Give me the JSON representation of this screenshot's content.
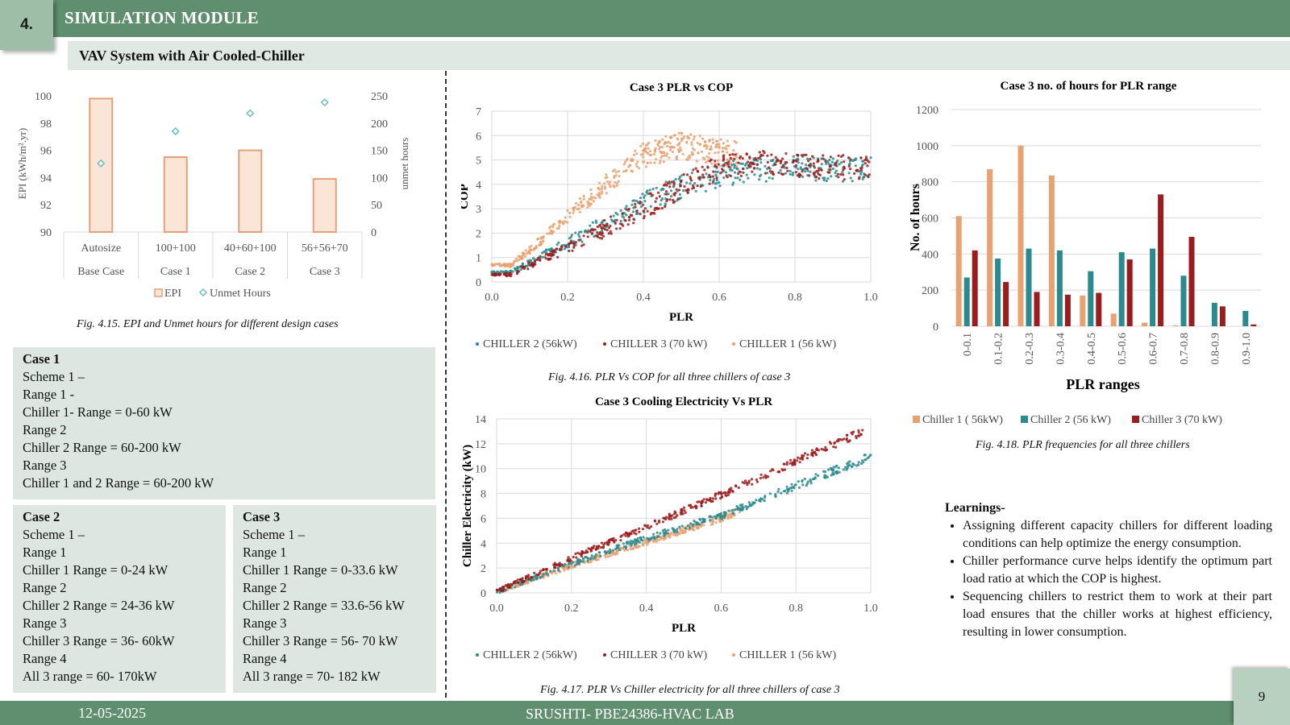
{
  "header": {
    "number": "4.",
    "title": "SIMULATION MODULE",
    "subtitle": "VAV System with Air Cooled-Chiller"
  },
  "fig415": {
    "caption": "Fig. 4.15. EPI and Unmet hours for different design cases",
    "chart_data": {
      "type": "bar",
      "categories": [
        [
          "Autosize",
          "Base Case"
        ],
        [
          "100+100",
          "Case 1"
        ],
        [
          "40+60+100",
          "Case 2"
        ],
        [
          "56+56+70",
          "Case 3"
        ]
      ],
      "series": [
        {
          "name": "EPI",
          "type": "bar",
          "axis": "left",
          "values": [
            99.8,
            95.5,
            96.0,
            93.9
          ]
        },
        {
          "name": "Unmet Hours",
          "type": "scatter",
          "axis": "right",
          "values": [
            126,
            185,
            218,
            238
          ]
        }
      ],
      "ylabel_left": "EPI (kWh/m².yr)",
      "ylabel_right": "unmet hours",
      "ylim_left": [
        90,
        100
      ],
      "yticks_left": [
        "90",
        "92",
        "94",
        "96",
        "98",
        "100"
      ],
      "ylim_right": [
        0,
        250
      ],
      "yticks_right": [
        "0",
        "50",
        "100",
        "150",
        "200",
        "250"
      ],
      "legend": [
        "EPI",
        "Unmet Hours"
      ],
      "colors": {
        "bar_fill": "#fbe5d6",
        "bar_stroke": "#e4a07a",
        "marker": "#6cbcc0"
      }
    }
  },
  "fig416": {
    "title": "Case 3 PLR vs COP",
    "caption": "Fig. 4.16. PLR Vs  COP for all three chillers of case 3",
    "xlabel": "PLR",
    "ylabel": "COP",
    "xticks": [
      "0.0",
      "0.2",
      "0.4",
      "0.6",
      "0.8",
      "1.0"
    ],
    "yticks": [
      "0",
      "1",
      "2",
      "3",
      "4",
      "5",
      "6",
      "7"
    ],
    "legend": [
      "CHILLER 2 (56kW)",
      "CHILLER 3 (70 kW)",
      "CHILLER 1 (56 kW)"
    ],
    "chart_data": {
      "type": "scatter",
      "xlim": [
        0,
        1
      ],
      "ylim": [
        0,
        7
      ],
      "series": [
        {
          "name": "CHILLER 2 (56kW)",
          "color": "#2b8a8e",
          "x": [
            0.05,
            0.1,
            0.2,
            0.3,
            0.4,
            0.5,
            0.6,
            0.7,
            0.8,
            0.9,
            1.0
          ],
          "y": [
            0.4,
            0.8,
            1.6,
            2.4,
            3.2,
            3.9,
            4.4,
            4.6,
            4.7,
            4.6,
            4.6
          ]
        },
        {
          "name": "CHILLER 3 (70 kW)",
          "color": "#9b1c1c",
          "x": [
            0.05,
            0.1,
            0.2,
            0.3,
            0.4,
            0.5,
            0.6,
            0.7,
            0.8,
            0.9,
            1.0
          ],
          "y": [
            0.3,
            0.7,
            1.4,
            2.2,
            3.0,
            3.9,
            4.7,
            4.9,
            4.8,
            4.7,
            4.7
          ]
        },
        {
          "name": "CHILLER 1 (56 kW)",
          "color": "#e8a272",
          "x": [
            0.05,
            0.1,
            0.2,
            0.3,
            0.4,
            0.5,
            0.6,
            0.65
          ],
          "y": [
            0.7,
            1.3,
            2.7,
            4.0,
            5.2,
            5.6,
            5.3,
            5.2
          ]
        }
      ]
    }
  },
  "fig417": {
    "title": "Case 3 Cooling Electricity Vs PLR",
    "caption": "Fig. 4.17. PLR Vs  Chiller electricity  for all three chillers of case 3",
    "xlabel": "PLR",
    "ylabel": "Chiller Electricity (kW)",
    "xticks": [
      "0.0",
      "0.2",
      "0.4",
      "0.6",
      "0.8",
      "1.0"
    ],
    "yticks": [
      "0",
      "2",
      "4",
      "6",
      "8",
      "10",
      "12",
      "14"
    ],
    "legend": [
      "CHILLER 2 (56kW)",
      "CHILLER 3 (70 kW)",
      "CHILLER 1 (56 kW)"
    ],
    "chart_data": {
      "type": "scatter",
      "xlim": [
        0,
        1
      ],
      "ylim": [
        0,
        14
      ],
      "series": [
        {
          "name": "CHILLER 2 (56kW)",
          "color": "#2b8a8e",
          "x": [
            0.0,
            0.2,
            0.4,
            0.6,
            0.8,
            1.0
          ],
          "y": [
            0.1,
            2.3,
            4.4,
            6.2,
            8.6,
            11.0
          ]
        },
        {
          "name": "CHILLER 3 (70 kW)",
          "color": "#9b1c1c",
          "x": [
            0.0,
            0.2,
            0.4,
            0.6,
            0.8,
            0.98
          ],
          "y": [
            0.1,
            2.8,
            5.3,
            7.9,
            10.6,
            13.0
          ]
        },
        {
          "name": "CHILLER 1 (56 kW)",
          "color": "#e8a272",
          "x": [
            0.0,
            0.2,
            0.4,
            0.6,
            0.65
          ],
          "y": [
            0.1,
            2.2,
            4.1,
            6.0,
            6.6
          ]
        }
      ]
    }
  },
  "fig418": {
    "title": "Case 3 no. of hours for PLR range",
    "caption": "Fig. 4.18. PLR frequencies for all three chillers",
    "xlabel": "PLR ranges",
    "ylabel": "No. of hours",
    "yticks": [
      "0",
      "200",
      "400",
      "600",
      "800",
      "1000",
      "1200"
    ],
    "chart_data": {
      "type": "bar",
      "categories": [
        "0-0.1",
        "0.1-0.2",
        "0.2-0.3",
        "0.3-0.4",
        "0.4-0.5",
        "0.5-0.6",
        "0.6-0.7",
        "0.7-0.8",
        "0.8-0.9",
        "0.9-1.0"
      ],
      "ylim": [
        0,
        1200
      ],
      "series": [
        {
          "name": "Chiller 1 ( 56kW)",
          "color": "#e8a272",
          "values": [
            610,
            870,
            1000,
            835,
            170,
            70,
            20,
            5,
            0,
            0
          ]
        },
        {
          "name": "Chiller 2 (56 kW)",
          "color": "#2b8a8e",
          "values": [
            270,
            375,
            430,
            420,
            305,
            410,
            430,
            280,
            130,
            85
          ]
        },
        {
          "name": "Chiller 3 (70 kW)",
          "color": "#9b1c1c",
          "values": [
            420,
            245,
            190,
            175,
            185,
            370,
            730,
            495,
            110,
            10
          ]
        }
      ]
    }
  },
  "case1": {
    "lines": [
      "Case 1",
      "Scheme 1 –",
      "Range 1  -",
      "Chiller  1- Range = 0-60 kW",
      "Range 2",
      "Chiller  2 Range = 60-200 kW",
      "Range 3",
      "Chiller  1 and 2 Range = 60-200 kW"
    ]
  },
  "case2": {
    "lines": [
      "Case 2",
      "Scheme 1 –",
      "Range 1",
      "Chiller  1   Range = 0-24 kW",
      "Range 2",
      "Chiller  2 Range = 24-36 kW",
      "Range 3",
      "Chiller  3 Range = 36- 60kW",
      "Range 4",
      "All 3  range = 60- 170kW"
    ]
  },
  "case3": {
    "lines": [
      "Case 3",
      "Scheme 1 –",
      "Range 1",
      "Chiller  1   Range = 0-33.6 kW",
      "Range 2",
      "Chiller  2   Range = 33.6-56 kW",
      "Range 3",
      "Chiller  3 Range = 56- 70 kW",
      "Range 4",
      "All 3  range = 70- 182 kW"
    ]
  },
  "learnings": {
    "heading": "Learnings-",
    "items": [
      "Assigning different capacity chillers for different loading conditions can help optimize the energy consumption.",
      "Chiller performance curve helps identify the optimum part load ratio at which the COP is highest.",
      "Sequencing chillers to restrict them to work at their part load ensures that the chiller works at highest efficiency, resulting in lower consumption."
    ]
  },
  "footer": {
    "date": "12-05-2025",
    "text": "SRUSHTI- PBE24386-HVAC  LAB",
    "page": "9"
  }
}
